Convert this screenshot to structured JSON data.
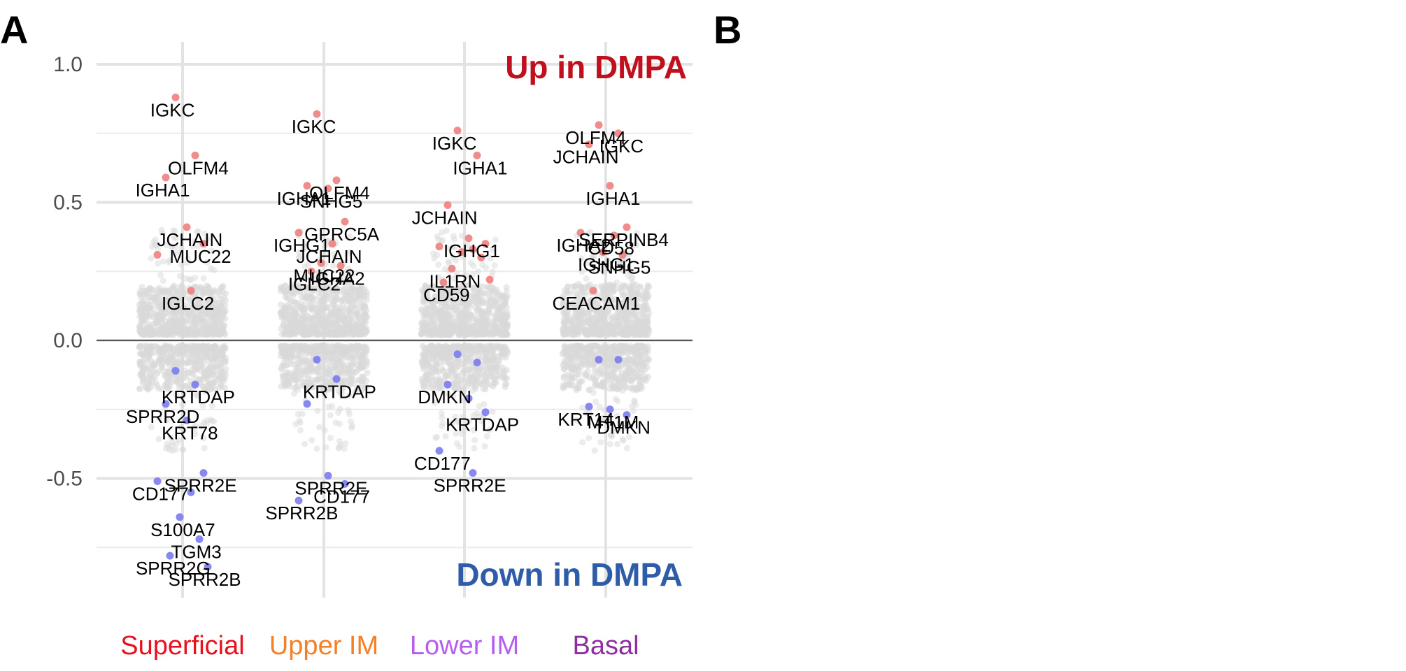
{
  "panels": [
    "A",
    "B"
  ],
  "chart_data": {
    "type": "scatter",
    "title": "",
    "xlabel": "",
    "ylabel": "",
    "ylim": [
      -0.95,
      1.1
    ],
    "yticks": [
      {
        "value": 1.0,
        "label": "1.0"
      },
      {
        "value": 0.5,
        "label": "0.5"
      },
      {
        "value": 0.0,
        "label": "0.0"
      },
      {
        "value": -0.5,
        "label": "-0.5"
      }
    ],
    "grid": true,
    "annotations": {
      "up": {
        "text": "Up in DMPA",
        "color": "#c0101e"
      },
      "down": {
        "text": "Down in DMPA",
        "color": "#2f5ca8"
      }
    },
    "background_color": "#d9d9d9",
    "up_color": "#f08080",
    "down_color": "#7b7bf0",
    "categories": [
      {
        "name": "Superficial",
        "color": "#e8101e",
        "up": [
          {
            "gene": "IGKC",
            "y": 0.88
          },
          {
            "gene": "OLFM4",
            "y": 0.67
          },
          {
            "gene": "IGHA1",
            "y": 0.59
          },
          {
            "gene": "JCHAIN",
            "y": 0.41
          },
          {
            "gene": "MUC22",
            "y": 0.35
          },
          {
            "gene": "",
            "y": 0.31
          },
          {
            "gene": "IGLC2",
            "y": 0.18
          }
        ],
        "down": [
          {
            "gene": "",
            "y": -0.11
          },
          {
            "gene": "KRTDAP",
            "y": -0.16
          },
          {
            "gene": "SPRR2D",
            "y": -0.23
          },
          {
            "gene": "KRT78",
            "y": -0.29
          },
          {
            "gene": "SPRR2E",
            "y": -0.48
          },
          {
            "gene": "CD177",
            "y": -0.51
          },
          {
            "gene": "",
            "y": -0.55
          },
          {
            "gene": "S100A7",
            "y": -0.64
          },
          {
            "gene": "TGM3",
            "y": -0.72
          },
          {
            "gene": "SPRR2G",
            "y": -0.78
          },
          {
            "gene": "SPRR2B",
            "y": -0.82
          }
        ]
      },
      {
        "name": "Upper IM",
        "color": "#f47f27",
        "up": [
          {
            "gene": "IGKC",
            "y": 0.82
          },
          {
            "gene": "OLFM4",
            "y": 0.58
          },
          {
            "gene": "IGHA1",
            "y": 0.56
          },
          {
            "gene": "SNHG5",
            "y": 0.55
          },
          {
            "gene": "GPRC5A",
            "y": 0.43
          },
          {
            "gene": "IGHG1",
            "y": 0.39
          },
          {
            "gene": "JCHAIN",
            "y": 0.35
          },
          {
            "gene": "MUC22",
            "y": 0.28
          },
          {
            "gene": "IGHA2",
            "y": 0.27
          },
          {
            "gene": "IGLC2",
            "y": 0.25
          }
        ],
        "down": [
          {
            "gene": "",
            "y": -0.07
          },
          {
            "gene": "KRTDAP",
            "y": -0.14
          },
          {
            "gene": "",
            "y": -0.23
          },
          {
            "gene": "SPRR2E",
            "y": -0.49
          },
          {
            "gene": "CD177",
            "y": -0.52
          },
          {
            "gene": "SPRR2B",
            "y": -0.58
          }
        ]
      },
      {
        "name": "Lower IM",
        "color": "#b65df0",
        "up": [
          {
            "gene": "IGKC",
            "y": 0.76
          },
          {
            "gene": "IGHA1",
            "y": 0.67
          },
          {
            "gene": "JCHAIN",
            "y": 0.49
          },
          {
            "gene": "IGHG1",
            "y": 0.37
          },
          {
            "gene": "",
            "y": 0.35
          },
          {
            "gene": "",
            "y": 0.34
          },
          {
            "gene": "",
            "y": 0.33
          },
          {
            "gene": "",
            "y": 0.32
          },
          {
            "gene": "",
            "y": 0.3
          },
          {
            "gene": "IL1RN",
            "y": 0.26
          },
          {
            "gene": "",
            "y": 0.22
          },
          {
            "gene": "CD59",
            "y": 0.21
          }
        ],
        "down": [
          {
            "gene": "",
            "y": -0.05
          },
          {
            "gene": "",
            "y": -0.08
          },
          {
            "gene": "DMKN",
            "y": -0.16
          },
          {
            "gene": "",
            "y": -0.21
          },
          {
            "gene": "KRTDAP",
            "y": -0.26
          },
          {
            "gene": "CD177",
            "y": -0.4
          },
          {
            "gene": "SPRR2E",
            "y": -0.48
          }
        ]
      },
      {
        "name": "Basal",
        "color": "#8e2ea0",
        "up": [
          {
            "gene": "OLFM4",
            "y": 0.78
          },
          {
            "gene": "IGKC",
            "y": 0.75
          },
          {
            "gene": "JCHAIN",
            "y": 0.71
          },
          {
            "gene": "IGHA1",
            "y": 0.56
          },
          {
            "gene": "SERPINB4",
            "y": 0.41
          },
          {
            "gene": "IGHA2",
            "y": 0.39
          },
          {
            "gene": "CD58",
            "y": 0.38
          },
          {
            "gene": "IGHG1",
            "y": 0.32
          },
          {
            "gene": "SNHG5",
            "y": 0.31
          },
          {
            "gene": "CEACAM1",
            "y": 0.18
          }
        ],
        "down": [
          {
            "gene": "",
            "y": -0.07
          },
          {
            "gene": "",
            "y": -0.07
          },
          {
            "gene": "KRT14",
            "y": -0.24
          },
          {
            "gene": "MT1M",
            "y": -0.25
          },
          {
            "gene": "DMKN",
            "y": -0.27
          }
        ]
      }
    ]
  }
}
